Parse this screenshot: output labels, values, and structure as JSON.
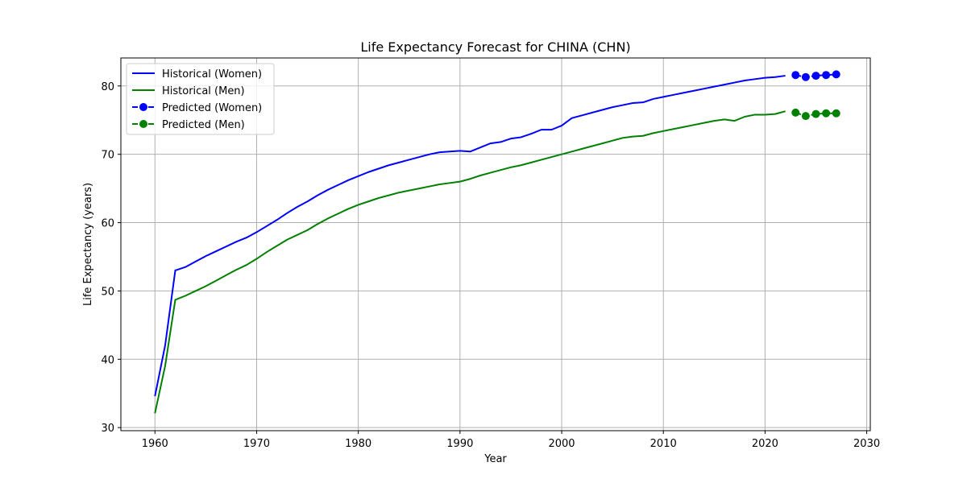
{
  "chart_data": {
    "type": "line",
    "title": "Life Expectancy Forecast for CHINA (CHN)",
    "xlabel": "Year",
    "ylabel": "Life Expectancy (years)",
    "xlim": [
      1956.65,
      2030.35
    ],
    "ylim": [
      29.55,
      84.1
    ],
    "xticks": [
      1960,
      1970,
      1980,
      1990,
      2000,
      2010,
      2020,
      2030
    ],
    "yticks": [
      30,
      40,
      50,
      60,
      70,
      80
    ],
    "grid": true,
    "legend_position": "top-left",
    "series": [
      {
        "name": "Historical (Women)",
        "color": "#0000ff",
        "style": "solid",
        "marker": "none",
        "x": [
          1960,
          1961,
          1962,
          1963,
          1964,
          1965,
          1966,
          1967,
          1968,
          1969,
          1970,
          1971,
          1972,
          1973,
          1974,
          1975,
          1976,
          1977,
          1978,
          1979,
          1980,
          1981,
          1982,
          1983,
          1984,
          1985,
          1986,
          1987,
          1988,
          1989,
          1990,
          1991,
          1992,
          1993,
          1994,
          1995,
          1996,
          1997,
          1998,
          1999,
          2000,
          2001,
          2002,
          2003,
          2004,
          2005,
          2006,
          2007,
          2008,
          2009,
          2010,
          2011,
          2012,
          2013,
          2014,
          2015,
          2016,
          2017,
          2018,
          2019,
          2020,
          2021,
          2022
        ],
        "y": [
          34.6,
          42.0,
          53.0,
          53.5,
          54.3,
          55.1,
          55.8,
          56.5,
          57.2,
          57.8,
          58.6,
          59.5,
          60.4,
          61.4,
          62.3,
          63.1,
          64.0,
          64.8,
          65.5,
          66.2,
          66.8,
          67.4,
          67.9,
          68.4,
          68.8,
          69.2,
          69.6,
          70.0,
          70.3,
          70.4,
          70.5,
          70.4,
          71.0,
          71.6,
          71.8,
          72.3,
          72.5,
          73.0,
          73.6,
          73.6,
          74.2,
          75.3,
          75.7,
          76.1,
          76.5,
          76.9,
          77.2,
          77.5,
          77.6,
          78.1,
          78.4,
          78.7,
          79.0,
          79.3,
          79.6,
          79.9,
          80.2,
          80.5,
          80.8,
          81.0,
          81.2,
          81.3,
          81.5
        ]
      },
      {
        "name": "Historical (Men)",
        "color": "#008000",
        "style": "solid",
        "marker": "none",
        "x": [
          1960,
          1961,
          1962,
          1963,
          1964,
          1965,
          1966,
          1967,
          1968,
          1969,
          1970,
          1971,
          1972,
          1973,
          1974,
          1975,
          1976,
          1977,
          1978,
          1979,
          1980,
          1981,
          1982,
          1983,
          1984,
          1985,
          1986,
          1987,
          1988,
          1989,
          1990,
          1991,
          1992,
          1993,
          1994,
          1995,
          1996,
          1997,
          1998,
          1999,
          2000,
          2001,
          2002,
          2003,
          2004,
          2005,
          2006,
          2007,
          2008,
          2009,
          2010,
          2011,
          2012,
          2013,
          2014,
          2015,
          2016,
          2017,
          2018,
          2019,
          2020,
          2021,
          2022
        ],
        "y": [
          32.1,
          39.0,
          48.7,
          49.3,
          50.0,
          50.7,
          51.5,
          52.3,
          53.1,
          53.8,
          54.7,
          55.7,
          56.6,
          57.5,
          58.2,
          58.9,
          59.8,
          60.6,
          61.3,
          62.0,
          62.6,
          63.1,
          63.6,
          64.0,
          64.4,
          64.7,
          65.0,
          65.3,
          65.6,
          65.8,
          66.0,
          66.4,
          66.9,
          67.3,
          67.7,
          68.1,
          68.4,
          68.8,
          69.2,
          69.6,
          70.0,
          70.4,
          70.8,
          71.2,
          71.6,
          72.0,
          72.4,
          72.6,
          72.7,
          73.1,
          73.4,
          73.7,
          74.0,
          74.3,
          74.6,
          74.9,
          75.1,
          74.9,
          75.5,
          75.8,
          75.8,
          75.9,
          76.3
        ]
      },
      {
        "name": "Predicted (Women)",
        "color": "#0000ff",
        "style": "dashed",
        "marker": "circle",
        "x": [
          2023,
          2024,
          2025,
          2026,
          2027
        ],
        "y": [
          81.6,
          81.3,
          81.5,
          81.6,
          81.7
        ]
      },
      {
        "name": "Predicted (Men)",
        "color": "#008000",
        "style": "dashed",
        "marker": "circle",
        "x": [
          2023,
          2024,
          2025,
          2026,
          2027
        ],
        "y": [
          76.1,
          75.6,
          75.9,
          76.0,
          76.0
        ]
      }
    ]
  }
}
